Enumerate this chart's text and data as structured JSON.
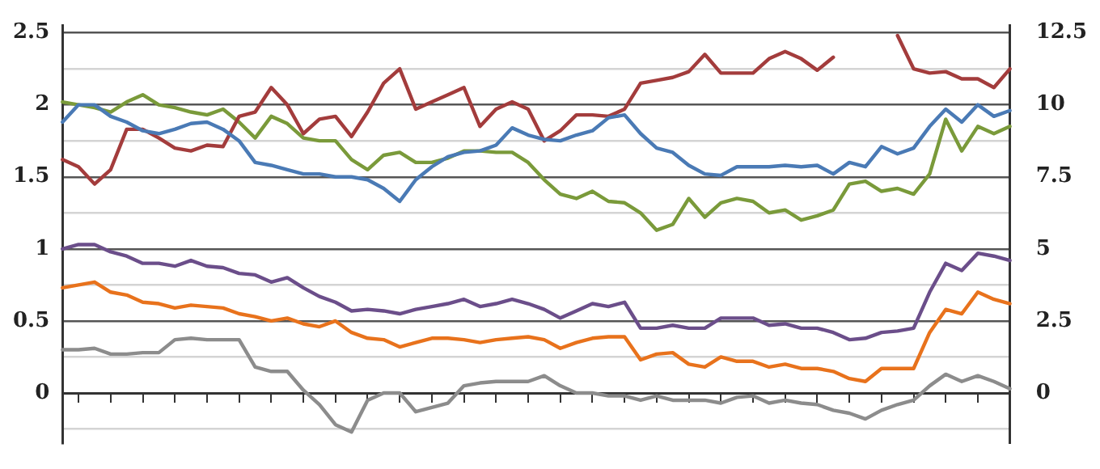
{
  "chart_data": {
    "type": "line",
    "categories": [
      null,
      null,
      null,
      null,
      null,
      null,
      null,
      null,
      null,
      null,
      null,
      null,
      null,
      null,
      null,
      null,
      null,
      null,
      null,
      null,
      null,
      null,
      null,
      null,
      null,
      null,
      null,
      null,
      null,
      null,
      null,
      null,
      null,
      null,
      null,
      null,
      null,
      null,
      null,
      null,
      null,
      null,
      null,
      null,
      null,
      null,
      null,
      null,
      null,
      null,
      null,
      null,
      null,
      null,
      null,
      null,
      null,
      null,
      null,
      null
    ],
    "series": [
      {
        "color": "#4a7ab5",
        "values": [
          1.88,
          2.0,
          2.0,
          1.92,
          1.88,
          1.82,
          1.8,
          1.83,
          1.87,
          1.88,
          1.83,
          1.75,
          1.6,
          1.58,
          1.55,
          1.52,
          1.52,
          1.5,
          1.5,
          1.48,
          1.42,
          1.33,
          1.48,
          1.57,
          1.64,
          1.67,
          1.68,
          1.72,
          1.84,
          1.79,
          1.76,
          1.75,
          1.79,
          1.82,
          1.91,
          1.93,
          1.8,
          1.7,
          1.67,
          1.58,
          1.52,
          1.51,
          1.57,
          1.57,
          1.57,
          1.58,
          1.57,
          1.58,
          1.52,
          1.6,
          1.57,
          1.71,
          1.66,
          1.7,
          1.85,
          1.97,
          1.88,
          2.0,
          1.92,
          1.96
        ]
      },
      {
        "color": "#a33c3c",
        "values": [
          1.62,
          1.57,
          1.45,
          1.55,
          1.83,
          1.83,
          1.77,
          1.7,
          1.68,
          1.72,
          1.71,
          1.92,
          1.95,
          2.12,
          2.0,
          1.8,
          1.9,
          1.92,
          1.78,
          1.95,
          2.15,
          2.25,
          1.97,
          2.02,
          2.07,
          2.12,
          1.85,
          1.97,
          2.02,
          1.97,
          1.75,
          1.82,
          1.93,
          1.93,
          1.92,
          1.97,
          2.15,
          2.17,
          2.19,
          2.23,
          2.35,
          2.22,
          2.22,
          2.22,
          2.32,
          2.37,
          2.32,
          2.24,
          2.33,
          null,
          null,
          null,
          2.48,
          2.25,
          2.22,
          2.23,
          2.18,
          2.18,
          2.12,
          2.25
        ]
      },
      {
        "color": "#7a9a3a",
        "values": [
          2.02,
          2.0,
          1.98,
          1.95,
          2.02,
          2.07,
          2.0,
          1.98,
          1.95,
          1.93,
          1.97,
          1.88,
          1.77,
          1.92,
          1.87,
          1.77,
          1.75,
          1.75,
          1.62,
          1.55,
          1.65,
          1.67,
          1.6,
          1.6,
          1.63,
          1.68,
          1.68,
          1.67,
          1.67,
          1.6,
          1.48,
          1.38,
          1.35,
          1.4,
          1.33,
          1.32,
          1.25,
          1.13,
          1.17,
          1.35,
          1.22,
          1.32,
          1.35,
          1.33,
          1.25,
          1.27,
          1.2,
          1.23,
          1.27,
          1.45,
          1.47,
          1.4,
          1.42,
          1.38,
          1.52,
          1.9,
          1.68,
          1.85,
          1.8,
          1.85
        ]
      },
      {
        "color": "#6b4e8a",
        "values": [
          1.0,
          1.03,
          1.03,
          0.98,
          0.95,
          0.9,
          0.9,
          0.88,
          0.92,
          0.88,
          0.87,
          0.83,
          0.82,
          0.77,
          0.8,
          0.73,
          0.67,
          0.63,
          0.57,
          0.58,
          0.57,
          0.55,
          0.58,
          0.6,
          0.62,
          0.65,
          0.6,
          0.62,
          0.65,
          0.62,
          0.58,
          0.52,
          0.57,
          0.62,
          0.6,
          0.63,
          0.45,
          0.45,
          0.47,
          0.45,
          0.45,
          0.52,
          0.52,
          0.52,
          0.47,
          0.48,
          0.45,
          0.45,
          0.42,
          0.37,
          0.38,
          0.42,
          0.43,
          0.45,
          0.7,
          0.9,
          0.85,
          0.97,
          0.95,
          0.92
        ]
      },
      {
        "color": "#e8721c",
        "values": [
          0.73,
          0.75,
          0.77,
          0.7,
          0.68,
          0.63,
          0.62,
          0.59,
          0.61,
          0.6,
          0.59,
          0.55,
          0.53,
          0.5,
          0.52,
          0.48,
          0.46,
          0.5,
          0.42,
          0.38,
          0.37,
          0.32,
          0.35,
          0.38,
          0.38,
          0.37,
          0.35,
          0.37,
          0.38,
          0.39,
          0.37,
          0.31,
          0.35,
          0.38,
          0.39,
          0.39,
          0.23,
          0.27,
          0.28,
          0.2,
          0.18,
          0.25,
          0.22,
          0.22,
          0.18,
          0.2,
          0.17,
          0.17,
          0.15,
          0.1,
          0.08,
          0.17,
          0.17,
          0.17,
          0.42,
          0.58,
          0.55,
          0.7,
          0.65,
          0.62
        ]
      },
      {
        "color": "#8c8c8c",
        "values": [
          0.3,
          0.3,
          0.31,
          0.27,
          0.27,
          0.28,
          0.28,
          0.37,
          0.38,
          0.37,
          0.37,
          0.37,
          0.18,
          0.15,
          0.15,
          0.02,
          -0.08,
          -0.22,
          -0.27,
          -0.05,
          0.0,
          0.0,
          -0.13,
          -0.1,
          -0.07,
          0.05,
          0.07,
          0.08,
          0.08,
          0.08,
          0.12,
          0.05,
          0.0,
          0.0,
          -0.02,
          -0.02,
          -0.05,
          -0.02,
          -0.05,
          -0.05,
          -0.05,
          -0.07,
          -0.03,
          -0.02,
          -0.07,
          -0.05,
          -0.07,
          -0.08,
          -0.12,
          -0.14,
          -0.18,
          -0.12,
          -0.08,
          -0.05,
          0.05,
          0.13,
          0.08,
          0.12,
          0.08,
          0.03
        ]
      }
    ],
    "ylim": [
      -0.35,
      2.55
    ],
    "yticks": [
      {
        "value": -0.25,
        "label": null
      },
      0,
      {
        "value": 0.25,
        "label": null
      },
      0.5,
      {
        "value": 0.75,
        "label": null
      },
      1,
      {
        "value": 1.25,
        "label": null
      },
      1.5,
      {
        "value": 1.75,
        "label": null
      },
      2,
      {
        "value": 2.25,
        "label": null
      },
      2.5
    ],
    "y2lim": [
      -1.75,
      12.75
    ],
    "y2ticks": [
      0,
      2.5,
      5,
      7.5,
      10,
      12.5
    ],
    "grid": "y",
    "legend": false,
    "marker": "none",
    "line_style": "solid",
    "tick_labels": "y"
  }
}
